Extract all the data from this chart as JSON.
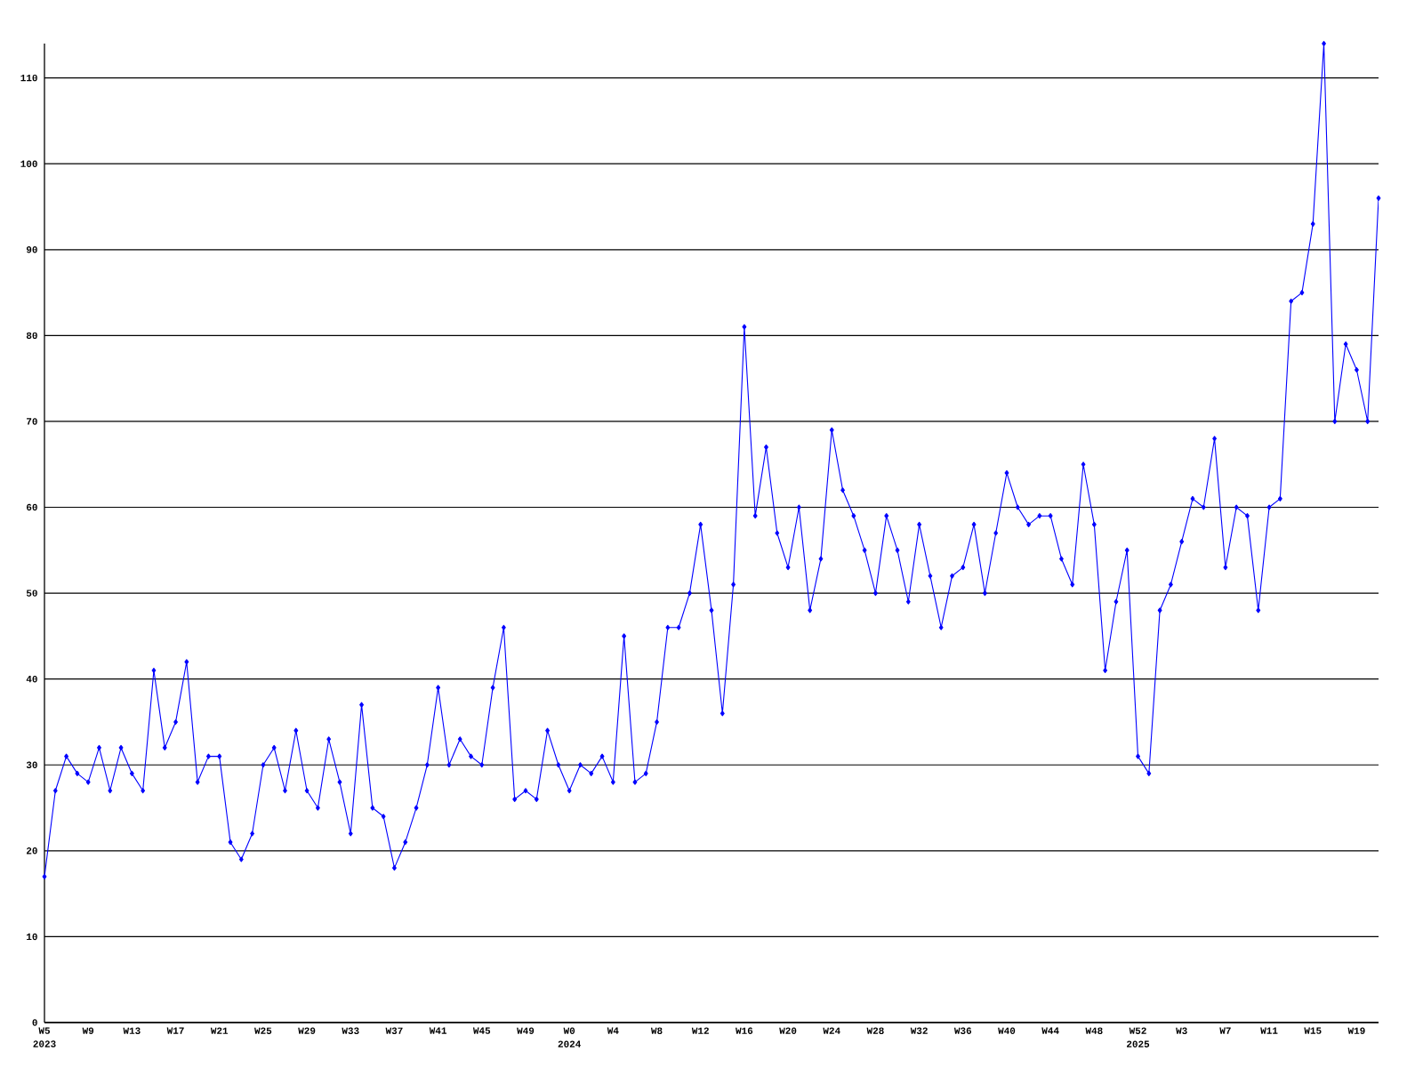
{
  "chart_data": {
    "type": "line",
    "color": "#0000ff",
    "marker": "diamond",
    "grid": "y",
    "ylim": [
      0,
      114
    ],
    "yticks": [
      0,
      10,
      20,
      30,
      40,
      50,
      60,
      70,
      80,
      90,
      100,
      110
    ],
    "categories": [
      "W5 2023",
      null,
      null,
      null,
      "W9",
      null,
      null,
      null,
      "W13",
      null,
      null,
      null,
      "W17",
      null,
      null,
      null,
      "W21",
      null,
      null,
      null,
      "W25",
      null,
      null,
      null,
      "W29",
      null,
      null,
      null,
      "W33",
      null,
      null,
      null,
      "W37",
      null,
      null,
      null,
      "W41",
      null,
      null,
      null,
      "W45",
      null,
      null,
      null,
      "W49",
      null,
      null,
      null,
      "W0 2024",
      null,
      null,
      null,
      "W4",
      null,
      null,
      null,
      "W8",
      null,
      null,
      null,
      "W12",
      null,
      null,
      null,
      "W16",
      null,
      null,
      null,
      "W20",
      null,
      null,
      null,
      "W24",
      null,
      null,
      null,
      "W28",
      null,
      null,
      null,
      "W32",
      null,
      null,
      null,
      "W36",
      null,
      null,
      null,
      "W40",
      null,
      null,
      null,
      "W44",
      null,
      null,
      null,
      "W48",
      null,
      null,
      null,
      "W52 2025",
      null,
      null,
      null,
      "W3",
      null,
      null,
      null,
      "W7",
      null,
      null,
      null,
      "W11",
      null,
      null,
      null,
      "W15",
      null,
      null,
      null,
      "W19",
      null,
      null
    ],
    "values": [
      17,
      27,
      31,
      29,
      28,
      32,
      27,
      32,
      29,
      27,
      41,
      32,
      35,
      42,
      28,
      31,
      31,
      21,
      19,
      22,
      30,
      32,
      27,
      34,
      27,
      25,
      33,
      28,
      22,
      37,
      25,
      24,
      18,
      21,
      25,
      30,
      39,
      30,
      33,
      31,
      30,
      39,
      46,
      26,
      27,
      26,
      34,
      30,
      27,
      30,
      29,
      31,
      28,
      45,
      28,
      29,
      35,
      46,
      46,
      50,
      58,
      48,
      36,
      51,
      81,
      59,
      67,
      57,
      53,
      60,
      48,
      54,
      69,
      62,
      59,
      55,
      50,
      59,
      55,
      49,
      58,
      52,
      46,
      52,
      53,
      58,
      50,
      57,
      64,
      60,
      58,
      59,
      59,
      54,
      51,
      65,
      58,
      41,
      49,
      55,
      31,
      29,
      48,
      51,
      56,
      61,
      60,
      68,
      53,
      60,
      59,
      48,
      60,
      61,
      84,
      85,
      93,
      114,
      70,
      79,
      76,
      70,
      96
    ]
  }
}
